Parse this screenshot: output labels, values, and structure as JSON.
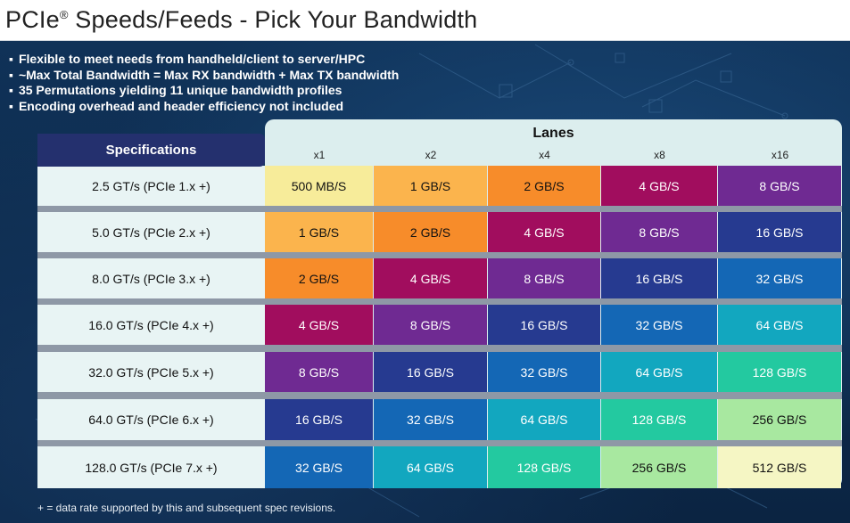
{
  "title": {
    "main": "PCIe",
    "mark": "®",
    "rest": " Speeds/Feeds - Pick Your Bandwidth"
  },
  "bullets": [
    "Flexible to meet needs from handheld/client to server/HPC",
    "~Max Total Bandwidth = Max RX bandwidth + Max TX bandwidth",
    "35 Permutations yielding 11 unique bandwidth profiles",
    "Encoding overhead and header efficiency not included"
  ],
  "table": {
    "spec_header": "Specifications",
    "lanes_header": "Lanes",
    "lanes": [
      "x1",
      "x2",
      "x4",
      "x8",
      "x16"
    ],
    "rows": [
      {
        "spec": "2.5 GT/s (PCIe 1.x +)",
        "values": [
          "500 MB/S",
          "1 GB/S",
          "2 GB/S",
          "4 GB/S",
          "8 GB/S"
        ]
      },
      {
        "spec": "5.0 GT/s (PCIe 2.x +)",
        "values": [
          "1 GB/S",
          "2 GB/S",
          "4 GB/S",
          "8 GB/S",
          "16 GB/S"
        ]
      },
      {
        "spec": "8.0 GT/s (PCIe 3.x +)",
        "values": [
          "2 GB/S",
          "4 GB/S",
          "8 GB/S",
          "16 GB/S",
          "32 GB/S"
        ]
      },
      {
        "spec": "16.0 GT/s (PCIe 4.x +)",
        "values": [
          "4 GB/S",
          "8 GB/S",
          "16 GB/S",
          "32 GB/S",
          "64 GB/S"
        ]
      },
      {
        "spec": "32.0 GT/s (PCIe 5.x +)",
        "values": [
          "8 GB/S",
          "16 GB/S",
          "32 GB/S",
          "64 GB/S",
          "128 GB/S"
        ]
      },
      {
        "spec": "64.0 GT/s (PCIe 6.x +)",
        "values": [
          "16 GB/S",
          "32 GB/S",
          "64 GB/S",
          "128 GB/S",
          "256 GB/S"
        ]
      },
      {
        "spec": "128.0 GT/s (PCIe 7.x +)",
        "values": [
          "32 GB/S",
          "64 GB/S",
          "128 GB/S",
          "256 GB/S",
          "512 GB/S"
        ]
      }
    ],
    "bandwidth_colors": {
      "500 MB/S": "#f7ec9a",
      "1 GB/S": "#fbb44d",
      "2 GB/S": "#f78c2a",
      "4 GB/S": "#a10d5e",
      "8 GB/S": "#6f2a92",
      "16 GB/S": "#263a90",
      "32 GB/S": "#1467b5",
      "64 GB/S": "#12a7bf",
      "128 GB/S": "#23c9a0",
      "256 GB/S": "#a8e8a0",
      "512 GB/S": "#f5f6c4"
    },
    "dark_text_values": [
      "500 MB/S",
      "1 GB/S",
      "2 GB/S",
      "256 GB/S",
      "512 GB/S"
    ]
  },
  "footnote": "+ = data rate supported by this and subsequent spec revisions."
}
